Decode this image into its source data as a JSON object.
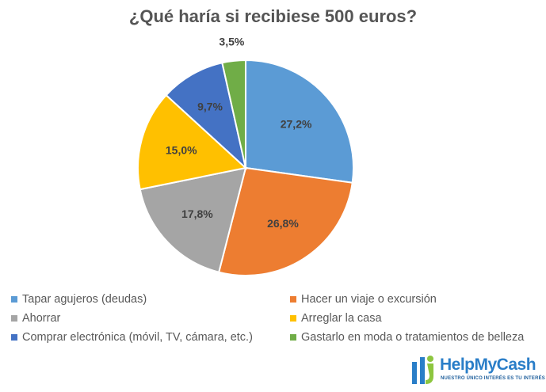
{
  "chart_data": {
    "type": "pie",
    "title": "¿Qué haría si recibiese 500 euros?",
    "categories": [
      "Tapar agujeros (deudas)",
      "Hacer un viaje o excursión",
      "Ahorrar",
      "Arreglar la casa",
      "Comprar electrónica (móvil, TV, cámara, etc.)",
      "Gastarlo en moda o tratamientos de belleza"
    ],
    "values": [
      27.2,
      26.8,
      17.8,
      15.0,
      9.7,
      3.5
    ],
    "data_labels": [
      "27,2%",
      "26,8%",
      "17,8%",
      "15,0%",
      "9,7%",
      "3,5%"
    ],
    "colors": [
      "#5B9BD5",
      "#ED7D31",
      "#A5A5A5",
      "#FFC000",
      "#4472C4",
      "#70AD47"
    ],
    "legend_position": "bottom"
  },
  "logo": {
    "name": "HelpMyCash",
    "tagline": "NUESTRO ÚNICO INTERÉS ES TU INTERÉS",
    "icon": "helpmycash-logo-icon"
  }
}
